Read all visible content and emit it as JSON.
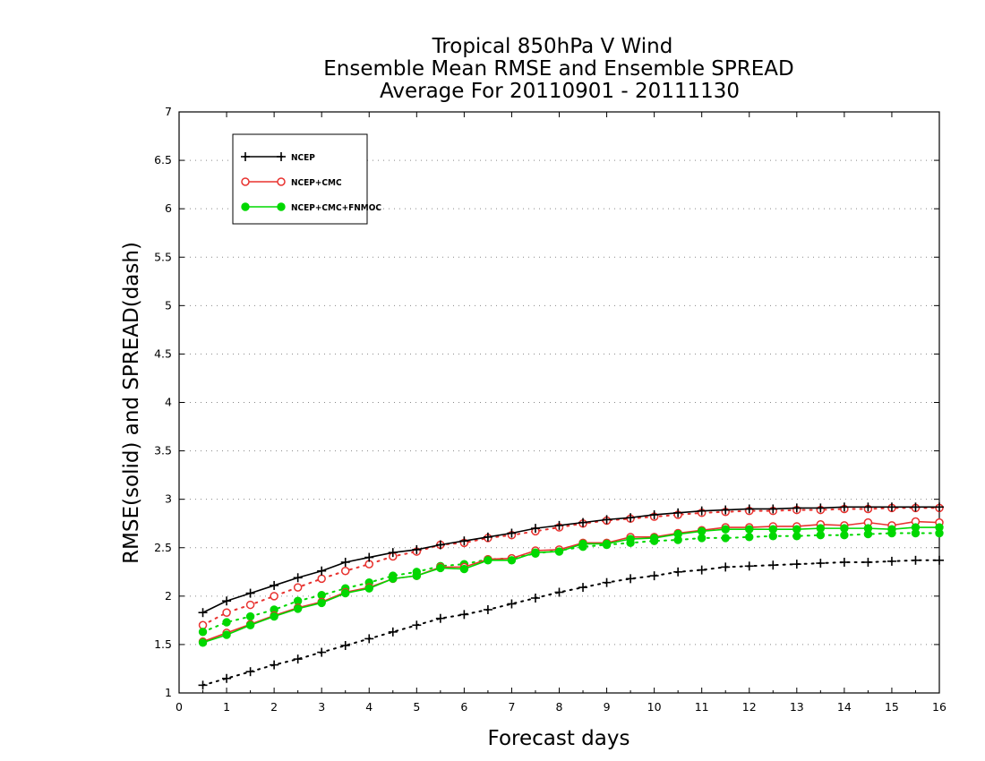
{
  "chart_data": {
    "type": "line",
    "title": [
      "Tropical 850hPa V Wind",
      "Ensemble Mean RMSE and Ensemble SPREAD",
      "Average For 20110901 - 20111130"
    ],
    "xlabel": "Forecast days",
    "ylabel": "RMSE(solid) and SPREAD(dash)",
    "xlim": [
      0,
      16
    ],
    "ylim": [
      1,
      7
    ],
    "xticks": [
      "0",
      "1",
      "2",
      "3",
      "4",
      "5",
      "6",
      "7",
      "8",
      "9",
      "10",
      "11",
      "12",
      "13",
      "14",
      "15",
      "16"
    ],
    "yticks": [
      "1",
      "1.5",
      "2",
      "2.5",
      "3",
      "3.5",
      "4",
      "4.5",
      "5",
      "5.5",
      "6",
      "6.5",
      "7"
    ],
    "grid": "horizontal-dotted",
    "legend_position": "top-left",
    "x": [
      0.5,
      1,
      1.5,
      2,
      2.5,
      3,
      3.5,
      4,
      4.5,
      5,
      5.5,
      6,
      6.5,
      7,
      7.5,
      8,
      8.5,
      9,
      9.5,
      10,
      10.5,
      11,
      11.5,
      12,
      12.5,
      13,
      13.5,
      14,
      14.5,
      15,
      15.5,
      16
    ],
    "series": [
      {
        "name": "NCEP",
        "color": "#000000",
        "marker": "plus",
        "rmse": [
          1.83,
          1.95,
          2.03,
          2.11,
          2.19,
          2.26,
          2.35,
          2.4,
          2.45,
          2.48,
          2.53,
          2.57,
          2.61,
          2.65,
          2.7,
          2.73,
          2.76,
          2.79,
          2.81,
          2.84,
          2.86,
          2.88,
          2.89,
          2.9,
          2.9,
          2.91,
          2.91,
          2.92,
          2.92,
          2.92,
          2.92,
          2.92
        ],
        "spread": [
          1.08,
          1.15,
          1.22,
          1.29,
          1.35,
          1.42,
          1.49,
          1.56,
          1.63,
          1.7,
          1.77,
          1.81,
          1.86,
          1.92,
          1.98,
          2.04,
          2.09,
          2.14,
          2.18,
          2.21,
          2.25,
          2.27,
          2.3,
          2.31,
          2.32,
          2.33,
          2.34,
          2.35,
          2.35,
          2.36,
          2.37,
          2.37
        ]
      },
      {
        "name": "NCEP+CMC",
        "color": "#e8322f",
        "marker": "open-circle",
        "rmse": [
          1.53,
          1.62,
          1.71,
          1.8,
          1.88,
          1.94,
          2.04,
          2.09,
          2.18,
          2.21,
          2.3,
          2.3,
          2.38,
          2.39,
          2.47,
          2.48,
          2.55,
          2.55,
          2.61,
          2.61,
          2.65,
          2.68,
          2.71,
          2.71,
          2.72,
          2.72,
          2.74,
          2.73,
          2.76,
          2.73,
          2.77,
          2.76
        ],
        "spread": [
          1.7,
          1.83,
          1.91,
          2.0,
          2.09,
          2.18,
          2.26,
          2.33,
          2.41,
          2.46,
          2.53,
          2.55,
          2.6,
          2.63,
          2.67,
          2.71,
          2.75,
          2.78,
          2.8,
          2.82,
          2.84,
          2.86,
          2.87,
          2.88,
          2.88,
          2.89,
          2.89,
          2.9,
          2.9,
          2.91,
          2.91,
          2.91
        ]
      },
      {
        "name": "NCEP+CMC+FNMOC",
        "color": "#00d800",
        "marker": "filled-circle",
        "rmse": [
          1.52,
          1.6,
          1.7,
          1.79,
          1.87,
          1.93,
          2.03,
          2.08,
          2.18,
          2.21,
          2.29,
          2.28,
          2.37,
          2.37,
          2.45,
          2.46,
          2.54,
          2.54,
          2.59,
          2.6,
          2.64,
          2.67,
          2.69,
          2.69,
          2.69,
          2.69,
          2.7,
          2.7,
          2.7,
          2.69,
          2.71,
          2.71
        ],
        "spread": [
          1.63,
          1.73,
          1.79,
          1.86,
          1.95,
          2.01,
          2.08,
          2.14,
          2.21,
          2.25,
          2.31,
          2.33,
          2.38,
          2.39,
          2.44,
          2.47,
          2.51,
          2.53,
          2.55,
          2.57,
          2.58,
          2.6,
          2.6,
          2.61,
          2.62,
          2.62,
          2.63,
          2.63,
          2.64,
          2.65,
          2.65,
          2.65
        ]
      }
    ]
  }
}
